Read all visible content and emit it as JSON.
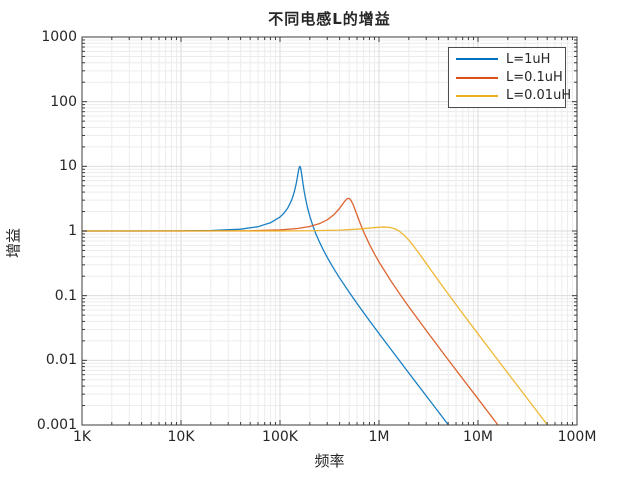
{
  "figure": {
    "title": "不同电感L的增益",
    "xlabel": "频率",
    "ylabel": "增益"
  },
  "axes": {
    "x_ticks": [
      {
        "v": 1000,
        "label": "1K"
      },
      {
        "v": 10000,
        "label": "10K"
      },
      {
        "v": 100000,
        "label": "100K"
      },
      {
        "v": 1000000,
        "label": "1M"
      },
      {
        "v": 10000000,
        "label": "10M"
      },
      {
        "v": 100000000,
        "label": "100M"
      }
    ],
    "y_ticks": [
      {
        "v": 1000,
        "label": "1000"
      },
      {
        "v": 100,
        "label": "100"
      },
      {
        "v": 10,
        "label": "10"
      },
      {
        "v": 1,
        "label": "1"
      },
      {
        "v": 0.1,
        "label": "0.1"
      },
      {
        "v": 0.01,
        "label": "0.01"
      },
      {
        "v": 0.001,
        "label": "0.001"
      }
    ]
  },
  "colors": {
    "background": "#ffffff",
    "axis": "#3b3b3b",
    "text": "#262626",
    "grid_major": "#dbdbdb",
    "grid_minor": "#ececec",
    "series_blue": "#0072BD",
    "series_orange": "#D95319",
    "series_yellow": "#EDB120"
  },
  "chart_data": {
    "type": "line",
    "title": "不同电感L的增益",
    "xlabel": "频率",
    "ylabel": "增益",
    "x_scale": "log",
    "y_scale": "log",
    "xlim": [
      1000,
      100000000
    ],
    "ylim": [
      0.001,
      1000
    ],
    "grid": true,
    "minor_grid": true,
    "legend_position": "top-right",
    "series": [
      {
        "name": "L=1uH",
        "color": "#0072BD",
        "resonance_hz": 159150,
        "peak_gain": 10,
        "points": [
          [
            1000,
            1.0
          ],
          [
            3000,
            1.0
          ],
          [
            10000,
            1.004
          ],
          [
            20000,
            1.016
          ],
          [
            40000,
            1.067
          ],
          [
            60000,
            1.166
          ],
          [
            80000,
            1.339
          ],
          [
            100000,
            1.643
          ],
          [
            110000,
            1.898
          ],
          [
            120000,
            2.283
          ],
          [
            130000,
            2.918
          ],
          [
            135000,
            3.412
          ],
          [
            140000,
            4.12
          ],
          [
            145000,
            5.19
          ],
          [
            150000,
            6.84
          ],
          [
            153000,
            8.16
          ],
          [
            156000,
            9.47
          ],
          [
            158800,
            10.01
          ],
          [
            159150,
            10.0
          ],
          [
            162000,
            9.26
          ],
          [
            165000,
            7.82
          ],
          [
            170000,
            5.65
          ],
          [
            175000,
            4.23
          ],
          [
            180000,
            3.32
          ],
          [
            190000,
            2.26
          ],
          [
            200000,
            1.688
          ],
          [
            215000,
            1.197
          ],
          [
            230000,
            0.911
          ],
          [
            250000,
            0.678
          ],
          [
            280000,
            0.476
          ],
          [
            300000,
            0.391
          ],
          [
            350000,
            0.26
          ],
          [
            400000,
            0.188
          ],
          [
            500000,
            0.113
          ],
          [
            600000,
            0.0757
          ],
          [
            800000,
            0.0412
          ],
          [
            1000000,
            0.026
          ],
          [
            1500000,
            0.0114
          ],
          [
            2000000,
            0.00637
          ],
          [
            3000000,
            0.00282
          ],
          [
            5030000,
            0.001
          ]
        ]
      },
      {
        "name": "L=0.1uH",
        "color": "#D95319",
        "resonance_hz": 503300,
        "peak_gain": 3.2,
        "points": [
          [
            1000,
            1.0
          ],
          [
            10000,
            1.0
          ],
          [
            50000,
            1.009
          ],
          [
            100000,
            1.039
          ],
          [
            150000,
            1.092
          ],
          [
            200000,
            1.174
          ],
          [
            250000,
            1.299
          ],
          [
            300000,
            1.489
          ],
          [
            350000,
            1.782
          ],
          [
            400000,
            2.243
          ],
          [
            440000,
            2.752
          ],
          [
            470000,
            3.107
          ],
          [
            490000,
            3.203
          ],
          [
            503300,
            3.162
          ],
          [
            520000,
            2.997
          ],
          [
            550000,
            2.523
          ],
          [
            600000,
            1.769
          ],
          [
            650000,
            1.277
          ],
          [
            700000,
            0.968
          ],
          [
            800000,
            0.622
          ],
          [
            900000,
            0.441
          ],
          [
            1000000,
            0.332
          ],
          [
            1300000,
            0.175
          ],
          [
            1700000,
            0.0956
          ],
          [
            2000000,
            0.0674
          ],
          [
            3000000,
            0.0289
          ],
          [
            5000000,
            0.0102
          ],
          [
            8000000,
            0.00397
          ],
          [
            10000000,
            0.00254
          ],
          [
            15910000,
            0.001
          ]
        ]
      },
      {
        "name": "L=0.01uH",
        "color": "#EDB120",
        "resonance_hz": 1591500,
        "peak_gain": 1.15,
        "points": [
          [
            1000,
            1.0
          ],
          [
            100000,
            1.002
          ],
          [
            200000,
            1.008
          ],
          [
            400000,
            1.031
          ],
          [
            600000,
            1.067
          ],
          [
            800000,
            1.11
          ],
          [
            1000000,
            1.146
          ],
          [
            1125400,
            1.155
          ],
          [
            1300000,
            1.134
          ],
          [
            1450000,
            1.079
          ],
          [
            1591500,
            1.0
          ],
          [
            1800000,
            0.858
          ],
          [
            2000000,
            0.723
          ],
          [
            2200000,
            0.604
          ],
          [
            2500000,
            0.465
          ],
          [
            3000000,
            0.315
          ],
          [
            3500000,
            0.226
          ],
          [
            4000000,
            0.17
          ],
          [
            5000000,
            0.106
          ],
          [
            6500000,
            0.0617
          ],
          [
            8000000,
            0.0403
          ],
          [
            10000000,
            0.0257
          ],
          [
            15000000,
            0.0113
          ],
          [
            20000000,
            0.00635
          ],
          [
            30000000,
            0.00282
          ],
          [
            50300000,
            0.001
          ]
        ]
      }
    ]
  }
}
